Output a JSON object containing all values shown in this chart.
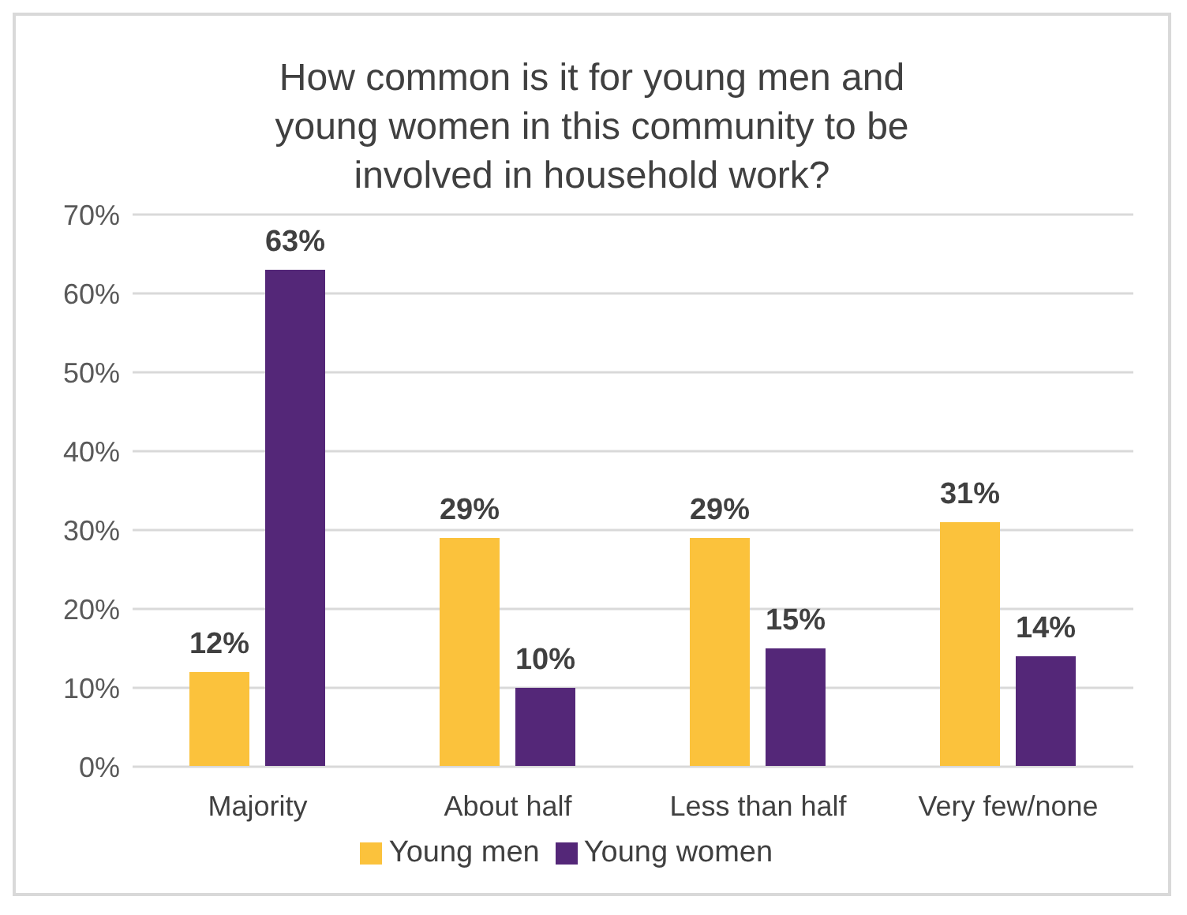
{
  "chart_data": {
    "type": "bar",
    "title": "How common is it for young men and young women in this community to be involved in household work?",
    "categories": [
      "Majority",
      "About half",
      "Less than half",
      "Very few/none"
    ],
    "series": [
      {
        "name": "Young men",
        "color": "#fbc23c",
        "values": [
          12,
          29,
          29,
          31
        ],
        "value_labels": [
          "12%",
          "29%",
          "29%",
          "31%"
        ]
      },
      {
        "name": "Young women",
        "color": "#542778",
        "values": [
          63,
          10,
          15,
          14
        ],
        "value_labels": [
          "63%",
          "10%",
          "15%",
          "14%"
        ]
      }
    ],
    "ylim": [
      0,
      70
    ],
    "yticks": [
      {
        "value": 0,
        "label": "0%"
      },
      {
        "value": 10,
        "label": "10%"
      },
      {
        "value": 20,
        "label": "20%"
      },
      {
        "value": 30,
        "label": "30%"
      },
      {
        "value": 40,
        "label": "40%"
      },
      {
        "value": 50,
        "label": "50%"
      },
      {
        "value": 60,
        "label": "60%"
      },
      {
        "value": 70,
        "label": "70%"
      }
    ],
    "grid": "y",
    "legend": "bottom"
  }
}
